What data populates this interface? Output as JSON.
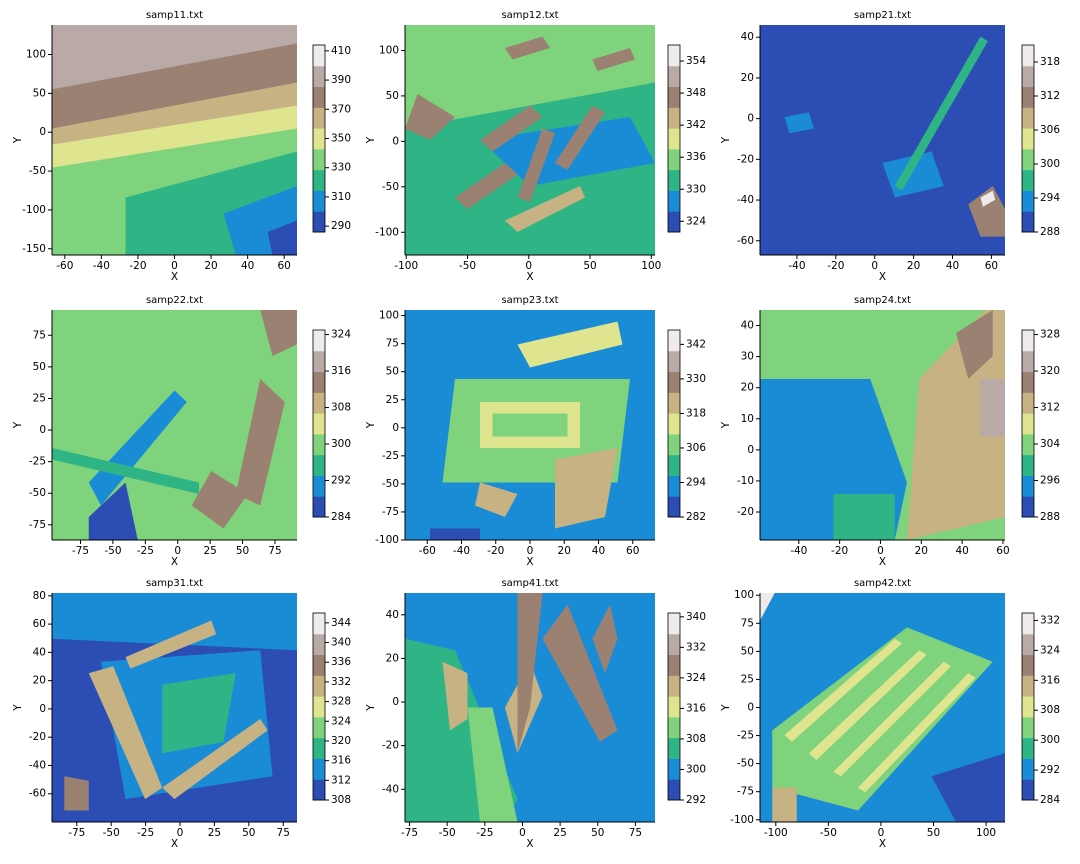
{
  "colors": [
    "#2b4db4",
    "#1a8cd6",
    "#2fb585",
    "#7fd37c",
    "#dfe48e",
    "#c6b283",
    "#9b8172",
    "#b9aaa7",
    "#efebea"
  ],
  "chart_data": [
    {
      "type": "contour",
      "title": "samp11.txt",
      "xlabel": "X",
      "ylabel": "Y",
      "xlim": [
        -67,
        67
      ],
      "xticks": [
        -60,
        -40,
        -20,
        0,
        20,
        40,
        60
      ],
      "ylim": [
        -158,
        138
      ],
      "yticks": [
        -150,
        -100,
        -50,
        0,
        50,
        100
      ],
      "clim": [
        286,
        414
      ],
      "cticks": [
        290,
        310,
        330,
        350,
        370,
        390,
        410
      ]
    },
    {
      "type": "contour",
      "title": "samp12.txt",
      "xlabel": "X",
      "ylabel": "Y",
      "xlim": [
        -101,
        103
      ],
      "xticks": [
        -100,
        -50,
        0,
        50,
        100
      ],
      "ylim": [
        -125,
        128
      ],
      "yticks": [
        -100,
        -50,
        0,
        50,
        100
      ],
      "clim": [
        322,
        357
      ],
      "cticks": [
        324,
        330,
        336,
        342,
        348,
        354
      ]
    },
    {
      "type": "contour",
      "title": "samp21.txt",
      "xlabel": "X",
      "ylabel": "Y",
      "xlim": [
        -59,
        67
      ],
      "xticks": [
        -40,
        -20,
        0,
        20,
        40,
        60
      ],
      "ylim": [
        -67,
        46
      ],
      "yticks": [
        -60,
        -40,
        -20,
        0,
        20,
        40
      ],
      "clim": [
        288,
        321
      ],
      "cticks": [
        288,
        294,
        300,
        306,
        312,
        318
      ]
    },
    {
      "type": "contour",
      "title": "samp22.txt",
      "xlabel": "X",
      "ylabel": "Y",
      "xlim": [
        -97,
        92
      ],
      "xticks": [
        -75,
        -50,
        -25,
        0,
        25,
        50,
        75
      ],
      "ylim": [
        -87,
        95
      ],
      "yticks": [
        -75,
        -50,
        -25,
        0,
        25,
        50,
        75
      ],
      "clim": [
        284,
        325
      ],
      "cticks": [
        284,
        292,
        300,
        308,
        316,
        324
      ]
    },
    {
      "type": "contour",
      "title": "samp23.txt",
      "xlabel": "X",
      "ylabel": "Y",
      "xlim": [
        -73,
        73
      ],
      "xticks": [
        -60,
        -40,
        -20,
        0,
        20,
        40,
        60
      ],
      "ylim": [
        -100,
        105
      ],
      "yticks": [
        -100,
        -75,
        -50,
        -25,
        0,
        25,
        50,
        75,
        100
      ],
      "clim": [
        282,
        347
      ],
      "cticks": [
        282,
        294,
        306,
        318,
        330,
        342
      ]
    },
    {
      "type": "contour",
      "title": "samp24.txt",
      "xlabel": "X",
      "ylabel": "Y",
      "xlim": [
        -59,
        61
      ],
      "xticks": [
        -40,
        -20,
        0,
        20,
        40,
        60
      ],
      "ylim": [
        -29,
        45
      ],
      "yticks": [
        -20,
        -10,
        0,
        10,
        20,
        30,
        40
      ],
      "clim": [
        288,
        329
      ],
      "cticks": [
        288,
        296,
        304,
        312,
        320,
        328
      ]
    },
    {
      "type": "contour",
      "title": "samp31.txt",
      "xlabel": "X",
      "ylabel": "Y",
      "xlim": [
        -93,
        85
      ],
      "xticks": [
        -75,
        -50,
        -25,
        0,
        25,
        50,
        75
      ],
      "ylim": [
        -80,
        82
      ],
      "yticks": [
        -60,
        -40,
        -20,
        0,
        20,
        40,
        60,
        80
      ],
      "clim": [
        308,
        346
      ],
      "cticks": [
        308,
        312,
        316,
        320,
        324,
        328,
        332,
        336,
        340,
        344
      ]
    },
    {
      "type": "contour",
      "title": "samp41.txt",
      "xlabel": "X",
      "ylabel": "Y",
      "xlim": [
        -78,
        88
      ],
      "xticks": [
        -75,
        -50,
        -25,
        0,
        25,
        50,
        75
      ],
      "ylim": [
        -55,
        50
      ],
      "yticks": [
        -40,
        -20,
        0,
        20,
        40
      ],
      "clim": [
        292,
        341
      ],
      "cticks": [
        292,
        300,
        308,
        316,
        324,
        332,
        340
      ]
    },
    {
      "type": "contour",
      "title": "samp42.txt",
      "xlabel": "X",
      "ylabel": "Y",
      "xlim": [
        -115,
        118
      ],
      "xticks": [
        -100,
        -50,
        0,
        50,
        100
      ],
      "ylim": [
        -102,
        102
      ],
      "yticks": [
        -100,
        -75,
        -50,
        -25,
        0,
        25,
        50,
        75,
        100
      ],
      "clim": [
        284,
        334
      ],
      "cticks": [
        284,
        292,
        300,
        308,
        316,
        324,
        332
      ]
    }
  ]
}
